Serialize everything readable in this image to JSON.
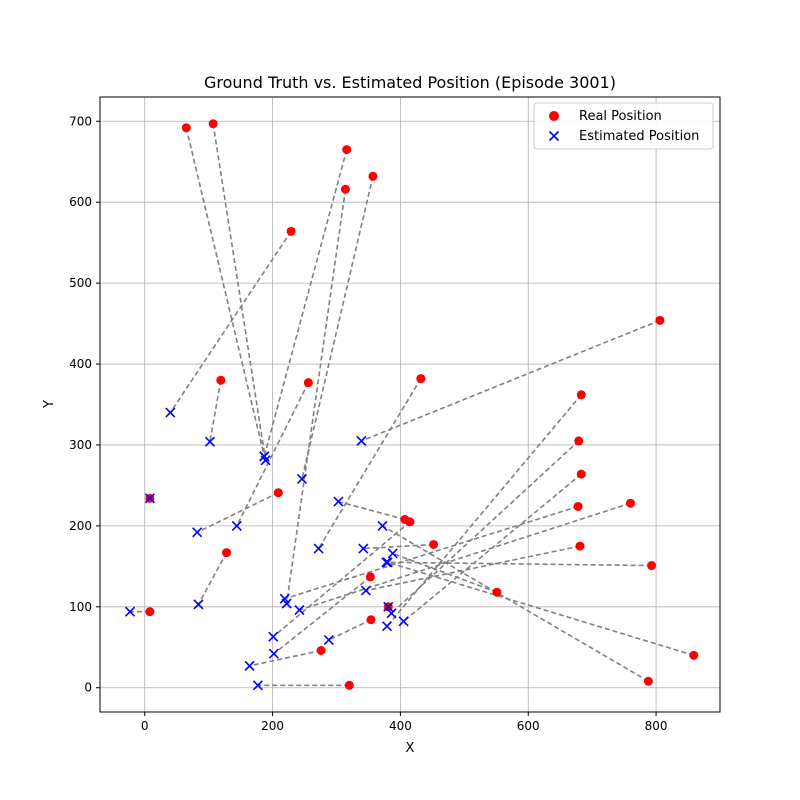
{
  "chart_data": {
    "type": "scatter",
    "title": "Ground Truth vs. Estimated Position (Episode 3001)",
    "xlabel": "X",
    "ylabel": "Y",
    "xlim": [
      -70,
      900
    ],
    "ylim": [
      -30,
      730
    ],
    "xticks": [
      0,
      200,
      400,
      600,
      800
    ],
    "yticks": [
      0,
      100,
      200,
      300,
      400,
      500,
      600,
      700
    ],
    "grid": true,
    "legend_position": "top-right",
    "colors": {
      "real": "#ff0000",
      "estimated": "#0000ff",
      "connector": "#808080"
    },
    "series": [
      {
        "name": "Real Position",
        "marker": "circle"
      },
      {
        "name": "Estimated Position",
        "marker": "x"
      }
    ],
    "pairs": [
      {
        "real": [
          65,
          692
        ],
        "est": [
          187,
          286
        ]
      },
      {
        "real": [
          107,
          697
        ],
        "est": [
          189,
          281
        ]
      },
      {
        "real": [
          316,
          665
        ],
        "est": [
          187,
          286
        ]
      },
      {
        "real": [
          314,
          616
        ],
        "est": [
          222,
          104
        ]
      },
      {
        "real": [
          357,
          632
        ],
        "est": [
          246,
          258
        ]
      },
      {
        "real": [
          229,
          564
        ],
        "est": [
          40,
          340
        ]
      },
      {
        "real": [
          119,
          380
        ],
        "est": [
          102,
          304
        ]
      },
      {
        "real": [
          256,
          377
        ],
        "est": [
          144,
          200
        ]
      },
      {
        "real": [
          432,
          382
        ],
        "est": [
          272,
          172
        ]
      },
      {
        "real": [
          806,
          454
        ],
        "est": [
          339,
          305
        ]
      },
      {
        "real": [
          683,
          362
        ],
        "est": [
          379,
          76
        ]
      },
      {
        "real": [
          679,
          305
        ],
        "est": [
          386,
          92
        ]
      },
      {
        "real": [
          683,
          264
        ],
        "est": [
          405,
          82
        ]
      },
      {
        "real": [
          678,
          224
        ],
        "est": [
          219,
          110
        ]
      },
      {
        "real": [
          681,
          175
        ],
        "est": [
          346,
          120
        ]
      },
      {
        "real": [
          760,
          228
        ],
        "est": [
          242,
          96
        ]
      },
      {
        "real": [
          793,
          151
        ],
        "est": [
          378,
          155
        ]
      },
      {
        "real": [
          859,
          40
        ],
        "est": [
          380,
          155
        ]
      },
      {
        "real": [
          788,
          8
        ],
        "est": [
          372,
          200
        ]
      },
      {
        "real": [
          209,
          241
        ],
        "est": [
          82,
          192
        ]
      },
      {
        "real": [
          8,
          234
        ],
        "est": [
          8,
          234
        ]
      },
      {
        "real": [
          128,
          167
        ],
        "est": [
          84,
          103
        ]
      },
      {
        "real": [
          8,
          94
        ],
        "est": [
          -23,
          94
        ]
      },
      {
        "real": [
          407,
          208
        ],
        "est": [
          303,
          230
        ]
      },
      {
        "real": [
          415,
          205
        ],
        "est": [
          201,
          63
        ]
      },
      {
        "real": [
          452,
          177
        ],
        "est": [
          342,
          172
        ]
      },
      {
        "real": [
          353,
          137
        ],
        "est": [
          202,
          42
        ]
      },
      {
        "real": [
          551,
          118
        ],
        "est": [
          388,
          166
        ]
      },
      {
        "real": [
          354,
          84
        ],
        "est": [
          288,
          59
        ]
      },
      {
        "real": [
          276,
          46
        ],
        "est": [
          164,
          27
        ]
      },
      {
        "real": [
          320,
          3
        ],
        "est": [
          177,
          3
        ]
      },
      {
        "real": [
          381,
          100
        ],
        "est": [
          381,
          100
        ]
      }
    ]
  }
}
